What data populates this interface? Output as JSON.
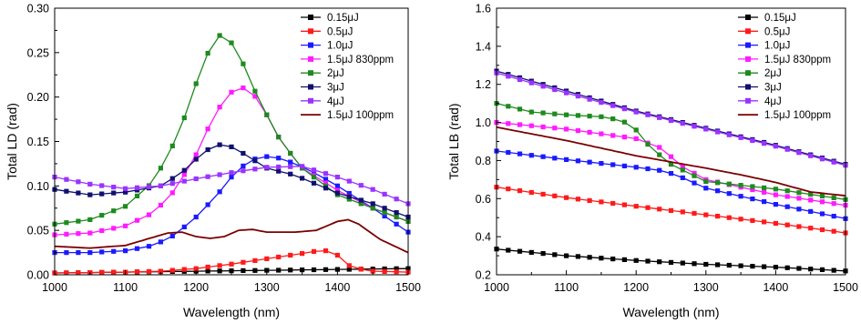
{
  "legend": [
    {
      "label": "0.15μJ",
      "color": "#000000",
      "line_only": false
    },
    {
      "label": "0.5μJ",
      "color": "#ff1a1a",
      "line_only": false
    },
    {
      "label": "1.0μJ",
      "color": "#1a1aff",
      "line_only": false
    },
    {
      "label": "1.5μJ 830ppm",
      "color": "#ff1aff",
      "line_only": false
    },
    {
      "label": "2μJ",
      "color": "#1e8a1e",
      "line_only": false
    },
    {
      "label": "3μJ",
      "color": "#101070",
      "line_only": false
    },
    {
      "label": "4μJ",
      "color": "#9a33ff",
      "line_only": false
    },
    {
      "label": "1.5μJ 100ppm",
      "color": "#7a0000",
      "line_only": true
    }
  ],
  "chart_data": [
    {
      "type": "line",
      "title": "",
      "xlabel": "Wavelength (nm)",
      "ylabel": "Total LD (rad)",
      "xlim": [
        1000,
        1500
      ],
      "ylim": [
        0,
        0.3
      ],
      "xticks": [
        "1000",
        "1100",
        "1200",
        "1300",
        "1400",
        "1500"
      ],
      "yticks": [
        "0.00",
        "0.05",
        "0.10",
        "0.15",
        "0.20",
        "0.25",
        "0.30"
      ],
      "legend_position": "top-right",
      "series": [
        {
          "name": "0.15μJ",
          "points": [
            [
              1000,
              0.002
            ],
            [
              1100,
              0.003
            ],
            [
              1200,
              0.004
            ],
            [
              1300,
              0.005
            ],
            [
              1400,
              0.006
            ],
            [
              1500,
              0.007
            ]
          ]
        },
        {
          "name": "0.5μJ",
          "points": [
            [
              1000,
              0.002
            ],
            [
              1100,
              0.003
            ],
            [
              1150,
              0.004
            ],
            [
              1200,
              0.007
            ],
            [
              1250,
              0.012
            ],
            [
              1300,
              0.018
            ],
            [
              1350,
              0.024
            ],
            [
              1380,
              0.028
            ],
            [
              1400,
              0.022
            ],
            [
              1420,
              0.008
            ],
            [
              1450,
              0.004
            ],
            [
              1500,
              0.003
            ]
          ]
        },
        {
          "name": "1.0μJ",
          "points": [
            [
              1000,
              0.025
            ],
            [
              1050,
              0.025
            ],
            [
              1100,
              0.027
            ],
            [
              1140,
              0.033
            ],
            [
              1170,
              0.045
            ],
            [
              1200,
              0.065
            ],
            [
              1230,
              0.09
            ],
            [
              1250,
              0.11
            ],
            [
              1270,
              0.125
            ],
            [
              1290,
              0.133
            ],
            [
              1310,
              0.133
            ],
            [
              1330,
              0.128
            ],
            [
              1360,
              0.118
            ],
            [
              1400,
              0.1
            ],
            [
              1450,
              0.075
            ],
            [
              1500,
              0.048
            ]
          ]
        },
        {
          "name": "1.5μJ 830ppm",
          "points": [
            [
              1000,
              0.045
            ],
            [
              1050,
              0.047
            ],
            [
              1100,
              0.055
            ],
            [
              1140,
              0.07
            ],
            [
              1170,
              0.095
            ],
            [
              1200,
              0.135
            ],
            [
              1220,
              0.17
            ],
            [
              1240,
              0.198
            ],
            [
              1260,
              0.213
            ],
            [
              1280,
              0.205
            ],
            [
              1300,
              0.18
            ],
            [
              1320,
              0.15
            ],
            [
              1350,
              0.12
            ],
            [
              1400,
              0.095
            ],
            [
              1450,
              0.075
            ],
            [
              1500,
              0.06
            ]
          ]
        },
        {
          "name": "2μJ",
          "points": [
            [
              1000,
              0.057
            ],
            [
              1050,
              0.062
            ],
            [
              1100,
              0.077
            ],
            [
              1140,
              0.105
            ],
            [
              1170,
              0.15
            ],
            [
              1190,
              0.19
            ],
            [
              1210,
              0.24
            ],
            [
              1230,
              0.268
            ],
            [
              1240,
              0.272
            ],
            [
              1260,
              0.25
            ],
            [
              1280,
              0.212
            ],
            [
              1300,
              0.18
            ],
            [
              1320,
              0.15
            ],
            [
              1350,
              0.12
            ],
            [
              1400,
              0.09
            ],
            [
              1450,
              0.075
            ],
            [
              1500,
              0.06
            ]
          ]
        },
        {
          "name": "3μJ",
          "points": [
            [
              1000,
              0.096
            ],
            [
              1050,
              0.09
            ],
            [
              1100,
              0.093
            ],
            [
              1150,
              0.1
            ],
            [
              1180,
              0.115
            ],
            [
              1200,
              0.13
            ],
            [
              1220,
              0.143
            ],
            [
              1240,
              0.148
            ],
            [
              1260,
              0.14
            ],
            [
              1280,
              0.13
            ],
            [
              1300,
              0.12
            ],
            [
              1340,
              0.112
            ],
            [
              1400,
              0.092
            ],
            [
              1450,
              0.08
            ],
            [
              1500,
              0.065
            ]
          ]
        },
        {
          "name": "4μJ",
          "points": [
            [
              1000,
              0.11
            ],
            [
              1050,
              0.102
            ],
            [
              1100,
              0.097
            ],
            [
              1150,
              0.1
            ],
            [
              1200,
              0.108
            ],
            [
              1250,
              0.115
            ],
            [
              1300,
              0.121
            ],
            [
              1350,
              0.122
            ],
            [
              1400,
              0.11
            ],
            [
              1450,
              0.096
            ],
            [
              1500,
              0.08
            ]
          ]
        },
        {
          "name": "1.5μJ 100ppm",
          "points": [
            [
              1000,
              0.032
            ],
            [
              1050,
              0.03
            ],
            [
              1100,
              0.033
            ],
            [
              1130,
              0.04
            ],
            [
              1160,
              0.047
            ],
            [
              1180,
              0.048
            ],
            [
              1200,
              0.043
            ],
            [
              1220,
              0.041
            ],
            [
              1240,
              0.043
            ],
            [
              1260,
              0.05
            ],
            [
              1280,
              0.051
            ],
            [
              1300,
              0.048
            ],
            [
              1340,
              0.048
            ],
            [
              1370,
              0.05
            ],
            [
              1400,
              0.06
            ],
            [
              1415,
              0.062
            ],
            [
              1430,
              0.057
            ],
            [
              1460,
              0.04
            ],
            [
              1500,
              0.025
            ]
          ]
        }
      ]
    },
    {
      "type": "line",
      "title": "",
      "xlabel": "Wavelength (nm)",
      "ylabel": "Total LB (rad)",
      "xlim": [
        1000,
        1500
      ],
      "ylim": [
        0.2,
        1.6
      ],
      "xticks": [
        "1000",
        "1100",
        "1200",
        "1300",
        "1400",
        "1500"
      ],
      "yticks": [
        "0.2",
        "0.4",
        "0.6",
        "0.8",
        "1.0",
        "1.2",
        "1.4",
        "1.6"
      ],
      "legend_position": "top-right",
      "series": [
        {
          "name": "0.15μJ",
          "points": [
            [
              1000,
              0.335
            ],
            [
              1100,
              0.3
            ],
            [
              1200,
              0.275
            ],
            [
              1300,
              0.255
            ],
            [
              1400,
              0.24
            ],
            [
              1500,
              0.22
            ]
          ]
        },
        {
          "name": "0.5μJ",
          "points": [
            [
              1000,
              0.66
            ],
            [
              1100,
              0.605
            ],
            [
              1200,
              0.56
            ],
            [
              1300,
              0.515
            ],
            [
              1400,
              0.47
            ],
            [
              1500,
              0.42
            ]
          ]
        },
        {
          "name": "1.0μJ",
          "points": [
            [
              1000,
              0.85
            ],
            [
              1100,
              0.805
            ],
            [
              1200,
              0.765
            ],
            [
              1240,
              0.745
            ],
            [
              1260,
              0.72
            ],
            [
              1300,
              0.655
            ],
            [
              1400,
              0.57
            ],
            [
              1500,
              0.495
            ]
          ]
        },
        {
          "name": "1.5μJ 830ppm",
          "points": [
            [
              1000,
              1.0
            ],
            [
              1100,
              0.965
            ],
            [
              1200,
              0.915
            ],
            [
              1240,
              0.86
            ],
            [
              1260,
              0.78
            ],
            [
              1300,
              0.7
            ],
            [
              1400,
              0.62
            ],
            [
              1500,
              0.565
            ]
          ]
        },
        {
          "name": "2μJ",
          "points": [
            [
              1000,
              1.1
            ],
            [
              1050,
              1.055
            ],
            [
              1100,
              1.04
            ],
            [
              1150,
              1.03
            ],
            [
              1180,
              1.01
            ],
            [
              1200,
              0.96
            ],
            [
              1220,
              0.87
            ],
            [
              1250,
              0.78
            ],
            [
              1300,
              0.69
            ],
            [
              1400,
              0.65
            ],
            [
              1500,
              0.595
            ]
          ]
        },
        {
          "name": "3μJ",
          "points": [
            [
              1000,
              1.27
            ],
            [
              1100,
              1.165
            ],
            [
              1200,
              1.06
            ],
            [
              1300,
              0.97
            ],
            [
              1400,
              0.88
            ],
            [
              1500,
              0.78
            ]
          ]
        },
        {
          "name": "4μJ",
          "points": [
            [
              1000,
              1.26
            ],
            [
              1100,
              1.155
            ],
            [
              1200,
              1.055
            ],
            [
              1300,
              0.965
            ],
            [
              1400,
              0.875
            ],
            [
              1500,
              0.775
            ]
          ]
        },
        {
          "name": "1.5μJ 100ppm",
          "points": [
            [
              1000,
              0.975
            ],
            [
              1100,
              0.905
            ],
            [
              1200,
              0.825
            ],
            [
              1300,
              0.76
            ],
            [
              1350,
              0.725
            ],
            [
              1400,
              0.685
            ],
            [
              1450,
              0.635
            ],
            [
              1500,
              0.615
            ]
          ]
        }
      ]
    }
  ]
}
